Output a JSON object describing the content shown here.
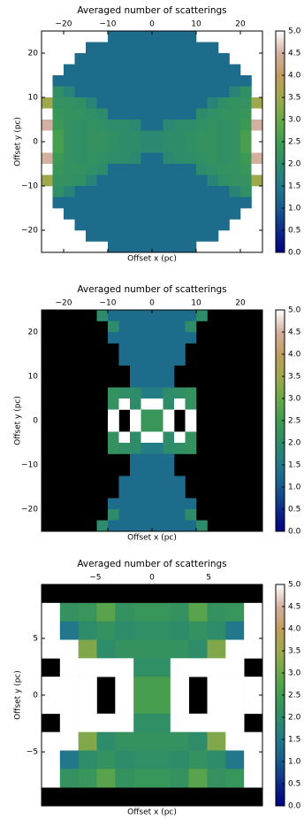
{
  "chart_data": [
    {
      "type": "heatmap",
      "title": "Averaged number of scatterings",
      "xlabel": "Offset x (pc)",
      "ylabel": "Offset y (pc)",
      "xlim": [
        -25,
        25
      ],
      "ylim": [
        -25,
        25
      ],
      "xticks": [
        {
          "value": -20,
          "label": "−20"
        },
        {
          "value": -10,
          "label": "−10"
        },
        0,
        10,
        20
      ],
      "yticks": [
        {
          "value": -20,
          "label": "−20"
        },
        {
          "value": -10,
          "label": "−10"
        },
        0,
        10,
        20
      ],
      "clim": [
        0,
        5
      ],
      "cticks": [
        {
          "value": 0,
          "label": "0.0"
        },
        0.5,
        {
          "value": 1,
          "label": "1.0"
        },
        1.5,
        {
          "value": 2,
          "label": "2.0"
        },
        2.5,
        {
          "value": 3,
          "label": "3.0"
        },
        3.5,
        {
          "value": 4,
          "label": "4.0"
        },
        4.5,
        {
          "value": 5,
          "label": "5.0"
        }
      ],
      "colormap": [
        "#000080",
        "#0d2b87",
        "#175a8c",
        "#22788a",
        "#2e8c6a",
        "#3f9c50",
        "#6aa84a",
        "#a0a84c",
        "#c09c60",
        "#d4b0a0",
        "#ffffff"
      ],
      "masked_color": "#ffffff",
      "z": [
        [
          null,
          null,
          null,
          null,
          null,
          null,
          1.3,
          1.3,
          1.3,
          1.3,
          1.3,
          1.3,
          1.3,
          1.3,
          null,
          null,
          null,
          null,
          null,
          null
        ],
        [
          null,
          null,
          null,
          null,
          1.3,
          1.3,
          1.3,
          1.3,
          1.3,
          1.3,
          1.3,
          1.3,
          1.3,
          1.3,
          1.3,
          1.3,
          null,
          null,
          null,
          null
        ],
        [
          null,
          null,
          null,
          1.3,
          1.3,
          1.3,
          1.3,
          1.3,
          1.3,
          1.3,
          1.3,
          1.3,
          1.3,
          1.3,
          1.3,
          1.3,
          1.3,
          null,
          null,
          null
        ],
        [
          null,
          null,
          1.3,
          1.3,
          1.3,
          1.3,
          1.3,
          1.3,
          1.3,
          1.3,
          1.3,
          1.3,
          1.3,
          1.3,
          1.3,
          1.3,
          1.3,
          1.3,
          null,
          null
        ],
        [
          null,
          1.3,
          1.3,
          1.3,
          1.3,
          1.3,
          1.3,
          1.3,
          1.3,
          1.3,
          1.3,
          1.3,
          1.3,
          1.3,
          1.3,
          1.3,
          1.3,
          1.3,
          1.3,
          null
        ],
        [
          null,
          2.1,
          1.8,
          1.3,
          1.3,
          1.3,
          1.3,
          1.3,
          1.3,
          1.3,
          1.3,
          1.3,
          1.3,
          1.3,
          1.3,
          1.3,
          1.3,
          1.8,
          2.1,
          null
        ],
        [
          3.5,
          2.2,
          2.2,
          2.1,
          1.8,
          1.3,
          1.3,
          1.3,
          1.3,
          1.3,
          1.3,
          1.3,
          1.3,
          1.3,
          1.3,
          1.8,
          2.1,
          2.2,
          2.2,
          3.5
        ],
        [
          5,
          2.3,
          2.2,
          2.2,
          2.1,
          2.0,
          1.3,
          1.3,
          1.3,
          1.3,
          1.3,
          1.3,
          1.3,
          1.3,
          2.0,
          2.1,
          2.2,
          2.2,
          2.3,
          5
        ],
        [
          4.5,
          2.4,
          2.2,
          2.1,
          2.2,
          2.1,
          2.0,
          2.0,
          1.9,
          1.3,
          1.3,
          1.9,
          2.0,
          2.0,
          2.1,
          2.2,
          2.1,
          2.2,
          2.4,
          4.5
        ],
        [
          5,
          2.6,
          2.2,
          2.1,
          2.2,
          2.2,
          2.1,
          2.0,
          2.0,
          1.9,
          1.9,
          2.0,
          2.0,
          2.1,
          2.2,
          2.2,
          2.1,
          2.2,
          2.6,
          5
        ],
        [
          5,
          2.6,
          2.2,
          2.1,
          2.2,
          2.2,
          2.1,
          2.0,
          2.0,
          1.9,
          1.9,
          2.0,
          2.0,
          2.1,
          2.2,
          2.2,
          2.1,
          2.2,
          2.6,
          5
        ],
        [
          4.5,
          2.4,
          2.2,
          2.1,
          2.2,
          2.1,
          2.0,
          2.0,
          1.9,
          1.3,
          1.3,
          1.9,
          2.0,
          2.0,
          2.1,
          2.2,
          2.1,
          2.2,
          2.4,
          4.5
        ],
        [
          5,
          2.3,
          2.2,
          2.2,
          2.1,
          2.0,
          1.3,
          1.3,
          1.3,
          1.3,
          1.3,
          1.3,
          1.3,
          1.3,
          2.0,
          2.1,
          2.2,
          2.2,
          2.3,
          5
        ],
        [
          3.5,
          2.2,
          2.2,
          2.1,
          1.8,
          1.3,
          1.3,
          1.3,
          1.3,
          1.3,
          1.3,
          1.3,
          1.3,
          1.3,
          1.3,
          1.8,
          2.1,
          2.2,
          2.2,
          3.5
        ],
        [
          null,
          2.1,
          1.8,
          1.3,
          1.3,
          1.3,
          1.3,
          1.3,
          1.3,
          1.3,
          1.3,
          1.3,
          1.3,
          1.3,
          1.3,
          1.3,
          1.3,
          1.8,
          2.1,
          null
        ],
        [
          null,
          1.3,
          1.3,
          1.3,
          1.3,
          1.3,
          1.3,
          1.3,
          1.3,
          1.3,
          1.3,
          1.3,
          1.3,
          1.3,
          1.3,
          1.3,
          1.3,
          1.3,
          1.3,
          null
        ],
        [
          null,
          null,
          1.3,
          1.3,
          1.3,
          1.3,
          1.3,
          1.3,
          1.3,
          1.3,
          1.3,
          1.3,
          1.3,
          1.3,
          1.3,
          1.3,
          1.3,
          1.3,
          null,
          null
        ],
        [
          null,
          null,
          null,
          1.3,
          1.3,
          1.3,
          1.3,
          1.3,
          1.3,
          1.3,
          1.3,
          1.3,
          1.3,
          1.3,
          1.3,
          1.3,
          1.3,
          null,
          null,
          null
        ],
        [
          null,
          null,
          null,
          null,
          1.3,
          1.3,
          1.3,
          1.3,
          1.3,
          1.3,
          1.3,
          1.3,
          1.3,
          1.3,
          1.3,
          1.3,
          null,
          null,
          null,
          null
        ],
        [
          null,
          null,
          null,
          null,
          null,
          null,
          1.3,
          1.3,
          1.3,
          1.3,
          1.3,
          1.3,
          1.3,
          1.3,
          null,
          null,
          null,
          null,
          null,
          null
        ]
      ]
    },
    {
      "type": "heatmap",
      "title": "Averaged number of scatterings",
      "xlabel": "Offset x (pc)",
      "ylabel": "Offset y (pc)",
      "xlim": [
        -25,
        25
      ],
      "ylim": [
        -25,
        25
      ],
      "xticks": [
        {
          "value": -20,
          "label": "−20"
        },
        {
          "value": -10,
          "label": "−10"
        },
        0,
        10,
        20
      ],
      "yticks": [
        {
          "value": -20,
          "label": "−20"
        },
        {
          "value": -10,
          "label": "−10"
        },
        0,
        10,
        20
      ],
      "clim": [
        0,
        5
      ],
      "cticks": [
        {
          "value": 0,
          "label": "0.0"
        },
        0.5,
        {
          "value": 1,
          "label": "1.0"
        },
        1.5,
        {
          "value": 2,
          "label": "2.0"
        },
        2.5,
        {
          "value": 3,
          "label": "3.0"
        },
        3.5,
        {
          "value": 4,
          "label": "4.0"
        },
        4.5,
        {
          "value": 5,
          "label": "5.0"
        }
      ],
      "colormap": [
        "#000080",
        "#0d2b87",
        "#175a8c",
        "#22788a",
        "#2e8c6a",
        "#3f9c50",
        "#6aa84a",
        "#a0a84c",
        "#c09c60",
        "#d4b0a0",
        "#ffffff"
      ],
      "masked_color": "#000000",
      "z": [
        [
          null,
          null,
          null,
          null,
          null,
          2.0,
          1.3,
          1.3,
          1.3,
          1.3,
          1.3,
          1.3,
          1.3,
          1.3,
          2.0,
          null,
          null,
          null,
          null,
          null
        ],
        [
          null,
          null,
          null,
          null,
          null,
          null,
          2.0,
          1.3,
          1.3,
          1.3,
          1.3,
          1.3,
          1.3,
          2.0,
          null,
          null,
          null,
          null,
          null,
          null
        ],
        [
          null,
          null,
          null,
          null,
          null,
          null,
          1.3,
          1.3,
          1.3,
          1.3,
          1.3,
          1.3,
          1.3,
          1.3,
          null,
          null,
          null,
          null,
          null,
          null
        ],
        [
          null,
          null,
          null,
          null,
          null,
          null,
          null,
          1.3,
          1.3,
          1.3,
          1.3,
          1.3,
          1.3,
          null,
          null,
          null,
          null,
          null,
          null,
          null
        ],
        [
          null,
          null,
          null,
          null,
          null,
          null,
          null,
          1.3,
          1.3,
          1.3,
          1.3,
          1.3,
          1.3,
          null,
          null,
          null,
          null,
          null,
          null,
          null
        ],
        [
          null,
          null,
          null,
          null,
          null,
          null,
          null,
          null,
          1.3,
          1.3,
          1.3,
          1.3,
          null,
          null,
          null,
          null,
          null,
          null,
          null,
          null
        ],
        [
          null,
          null,
          null,
          null,
          null,
          null,
          null,
          null,
          1.3,
          1.3,
          1.3,
          1.3,
          null,
          null,
          null,
          null,
          null,
          null,
          null,
          null
        ],
        [
          null,
          null,
          null,
          null,
          null,
          null,
          2.2,
          2.1,
          2.0,
          1.6,
          1.6,
          2.0,
          2.1,
          2.2,
          null,
          null,
          null,
          null,
          null,
          null
        ],
        [
          null,
          null,
          null,
          null,
          null,
          null,
          2.2,
          5,
          2.0,
          5,
          5,
          2.0,
          5,
          2.2,
          null,
          null,
          null,
          null,
          null,
          null
        ],
        [
          null,
          null,
          null,
          null,
          null,
          null,
          5,
          null,
          5,
          2.3,
          2.3,
          5,
          null,
          5,
          null,
          null,
          null,
          null,
          null,
          null
        ],
        [
          null,
          null,
          null,
          null,
          null,
          null,
          5,
          null,
          5,
          2.3,
          2.3,
          5,
          null,
          5,
          null,
          null,
          null,
          null,
          null,
          null
        ],
        [
          null,
          null,
          null,
          null,
          null,
          null,
          2.2,
          5,
          2.0,
          5,
          5,
          2.0,
          5,
          2.2,
          null,
          null,
          null,
          null,
          null,
          null
        ],
        [
          null,
          null,
          null,
          null,
          null,
          null,
          2.2,
          2.1,
          2.0,
          1.6,
          1.6,
          2.0,
          2.1,
          2.2,
          null,
          null,
          null,
          null,
          null,
          null
        ],
        [
          null,
          null,
          null,
          null,
          null,
          null,
          null,
          null,
          1.3,
          1.3,
          1.3,
          1.3,
          null,
          null,
          null,
          null,
          null,
          null,
          null,
          null
        ],
        [
          null,
          null,
          null,
          null,
          null,
          null,
          null,
          null,
          1.3,
          1.3,
          1.3,
          1.3,
          null,
          null,
          null,
          null,
          null,
          null,
          null,
          null
        ],
        [
          null,
          null,
          null,
          null,
          null,
          null,
          null,
          1.3,
          1.3,
          1.3,
          1.3,
          1.3,
          1.3,
          null,
          null,
          null,
          null,
          null,
          null,
          null
        ],
        [
          null,
          null,
          null,
          null,
          null,
          null,
          null,
          1.3,
          1.3,
          1.3,
          1.3,
          1.3,
          1.3,
          null,
          null,
          null,
          null,
          null,
          null,
          null
        ],
        [
          null,
          null,
          null,
          null,
          null,
          null,
          1.3,
          1.3,
          1.3,
          1.3,
          1.3,
          1.3,
          1.3,
          1.3,
          null,
          null,
          null,
          null,
          null,
          null
        ],
        [
          null,
          null,
          null,
          null,
          null,
          null,
          2.0,
          1.3,
          1.3,
          1.3,
          1.3,
          1.3,
          1.3,
          2.0,
          null,
          null,
          null,
          null,
          null,
          null
        ],
        [
          null,
          null,
          null,
          null,
          null,
          2.0,
          1.3,
          1.3,
          1.3,
          1.3,
          1.3,
          1.3,
          1.3,
          1.3,
          2.0,
          null,
          null,
          null,
          null,
          null
        ]
      ]
    },
    {
      "type": "heatmap",
      "title": "Averaged number of scatterings",
      "xlabel": "Offset x (pc)",
      "ylabel": "Offset y (pc)",
      "xlim": [
        -9.75,
        9.75
      ],
      "ylim": [
        -9.75,
        9.75
      ],
      "xticks": [
        {
          "value": -5,
          "label": "−5"
        },
        0,
        5
      ],
      "yticks": [
        {
          "value": -5,
          "label": "−5"
        },
        0,
        5
      ],
      "clim": [
        0,
        5
      ],
      "cticks": [
        {
          "value": 0,
          "label": "0.0"
        },
        0.5,
        {
          "value": 1,
          "label": "1.0"
        },
        1.5,
        {
          "value": 2,
          "label": "2.0"
        },
        2.5,
        {
          "value": 3,
          "label": "3.0"
        },
        3.5,
        {
          "value": 4,
          "label": "4.0"
        },
        4.5,
        {
          "value": 5,
          "label": "5.0"
        }
      ],
      "colormap": [
        "#000080",
        "#0d2b87",
        "#175a8c",
        "#22788a",
        "#2e8c6a",
        "#3f9c50",
        "#6aa84a",
        "#a0a84c",
        "#c09c60",
        "#d4b0a0",
        "#ffffff"
      ],
      "masked_color": "#000000",
      "z": [
        [
          null,
          null,
          null,
          null,
          null,
          null,
          null,
          null,
          null,
          null,
          null,
          null
        ],
        [
          5,
          2.2,
          2.3,
          2.8,
          2.2,
          2.3,
          2.3,
          2.2,
          2.8,
          2.2,
          2.3,
          5
        ],
        [
          5,
          1.5,
          2.0,
          2.2,
          2.0,
          2.1,
          2.1,
          2.0,
          2.2,
          2.0,
          1.5,
          5
        ],
        [
          5,
          5,
          3.2,
          2.0,
          2.2,
          2.2,
          2.2,
          2.2,
          2.0,
          3.2,
          5,
          5
        ],
        [
          null,
          5,
          5,
          5,
          5,
          2.1,
          2.1,
          5,
          5,
          5,
          5,
          null
        ],
        [
          5,
          5,
          5,
          null,
          5,
          2.6,
          2.6,
          5,
          null,
          5,
          5,
          5
        ],
        [
          5,
          5,
          5,
          null,
          5,
          2.6,
          2.6,
          5,
          null,
          5,
          5,
          5
        ],
        [
          null,
          5,
          5,
          5,
          5,
          2.1,
          2.1,
          5,
          5,
          5,
          5,
          null
        ],
        [
          5,
          5,
          3.2,
          2.0,
          2.2,
          2.2,
          2.2,
          2.2,
          2.0,
          3.2,
          5,
          5
        ],
        [
          5,
          1.5,
          2.0,
          2.2,
          2.0,
          2.1,
          2.1,
          2.0,
          2.2,
          2.0,
          1.5,
          5
        ],
        [
          5,
          2.2,
          2.3,
          2.8,
          2.2,
          2.3,
          2.3,
          2.2,
          2.8,
          2.2,
          2.3,
          5
        ],
        [
          null,
          null,
          null,
          null,
          null,
          null,
          null,
          null,
          null,
          null,
          null,
          null
        ]
      ]
    }
  ]
}
